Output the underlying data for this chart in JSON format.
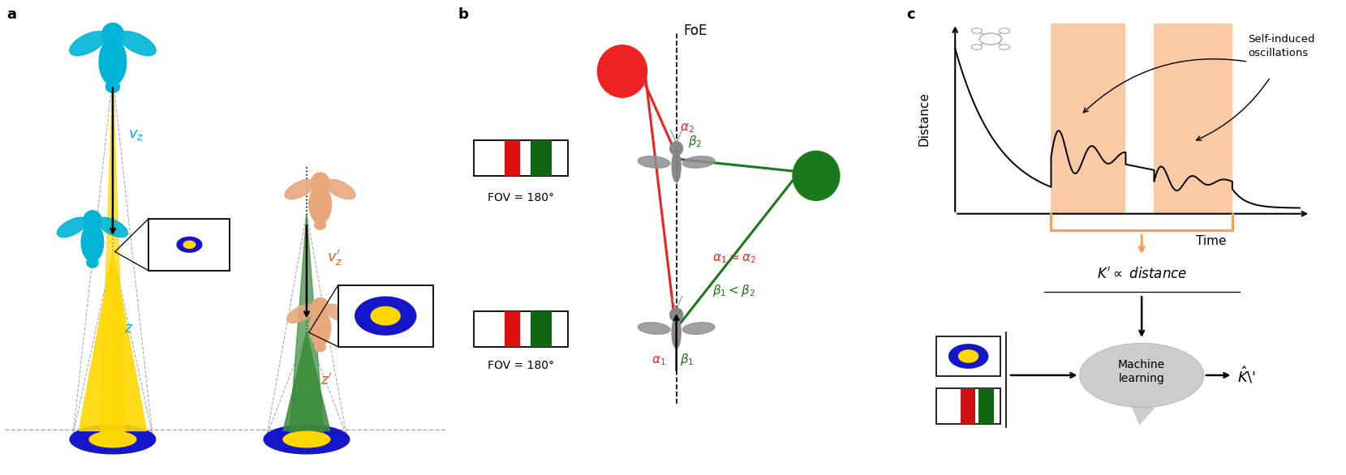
{
  "panel_a_label": "a",
  "panel_b_label": "b",
  "panel_c_label": "c",
  "bee_cyan_color": "#00B4D8",
  "bee_peach_color": "#E8A87C",
  "landing_pad_blue": "#1515CC",
  "landing_pad_yellow": "#FFD700",
  "cone_yellow": "#FFD700",
  "cone_green": "#3A8C3A",
  "foe_red": "#EE2222",
  "foe_green": "#1A7A1A",
  "alpha_color": "#EE2222",
  "beta_color": "#1A7A1A",
  "orange_highlight": "#F5A05A",
  "arrow_orange": "#E07820",
  "vz_color": "#00B4D8",
  "vz_prime_color": "#CC6622",
  "z_color": "#00B4D8",
  "z_prime_color": "#CC6622",
  "k_prime_text": "K’ ∝ distance",
  "fov_text": "FOV = 180°",
  "foe_text": "FoE",
  "time_text": "Time",
  "distance_text": "Distance",
  "machine_learning_text": "Machine\nlearning",
  "self_induced_text": "Self-induced\noscillations"
}
